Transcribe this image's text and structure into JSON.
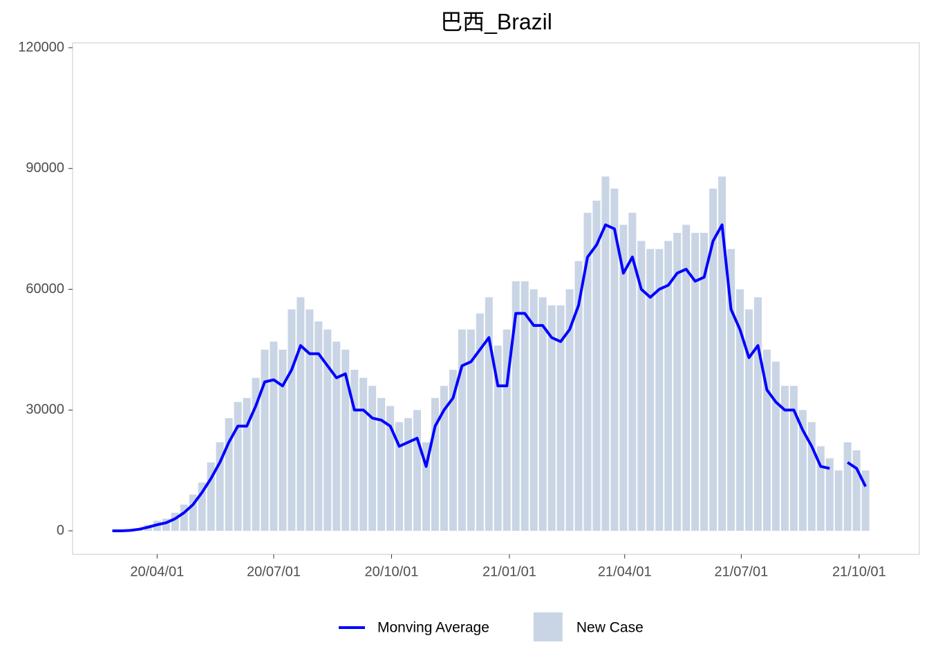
{
  "chart_data": {
    "type": "combo",
    "title": "巴西_Brazil",
    "x": [
      "20/02/26",
      "20/03/04",
      "20/03/11",
      "20/03/18",
      "20/03/25",
      "20/04/01",
      "20/04/08",
      "20/04/15",
      "20/04/22",
      "20/04/29",
      "20/05/06",
      "20/05/13",
      "20/05/20",
      "20/05/27",
      "20/06/03",
      "20/06/10",
      "20/06/17",
      "20/06/24",
      "20/07/01",
      "20/07/08",
      "20/07/15",
      "20/07/22",
      "20/07/29",
      "20/08/05",
      "20/08/12",
      "20/08/19",
      "20/08/26",
      "20/09/02",
      "20/09/09",
      "20/09/16",
      "20/09/23",
      "20/09/30",
      "20/10/07",
      "20/10/14",
      "20/10/21",
      "20/10/28",
      "20/11/04",
      "20/11/11",
      "20/11/18",
      "20/11/25",
      "20/12/02",
      "20/12/09",
      "20/12/16",
      "20/12/23",
      "20/12/30",
      "21/01/06",
      "21/01/13",
      "21/01/20",
      "21/01/27",
      "21/02/03",
      "21/02/10",
      "21/02/17",
      "21/02/24",
      "21/03/03",
      "21/03/10",
      "21/03/17",
      "21/03/24",
      "21/03/31",
      "21/04/07",
      "21/04/14",
      "21/04/21",
      "21/04/28",
      "21/05/05",
      "21/05/12",
      "21/05/19",
      "21/05/26",
      "21/06/02",
      "21/06/09",
      "21/06/16",
      "21/06/23",
      "21/06/30",
      "21/07/07",
      "21/07/14",
      "21/07/21",
      "21/07/28",
      "21/08/04",
      "21/08/11",
      "21/08/18",
      "21/08/25",
      "21/09/01",
      "21/09/08",
      "21/09/15",
      "21/09/22",
      "21/09/29",
      "21/10/06"
    ],
    "series": [
      {
        "name": "Monving Average",
        "type": "line",
        "color": "#0000ff",
        "values": [
          0,
          0,
          100,
          400,
          900,
          1500,
          2000,
          3000,
          4500,
          6500,
          9500,
          13000,
          17000,
          22000,
          26000,
          26000,
          31000,
          37000,
          37500,
          36000,
          40000,
          46000,
          44000,
          44000,
          41000,
          38000,
          39000,
          30000,
          30000,
          28000,
          27500,
          26000,
          21000,
          22000,
          23000,
          16000,
          26000,
          30000,
          33000,
          41000,
          42000,
          45000,
          48000,
          36000,
          36000,
          54000,
          54000,
          51000,
          51000,
          48000,
          47000,
          50000,
          56000,
          68000,
          71000,
          76000,
          75000,
          64000,
          68000,
          60000,
          58000,
          60000,
          61000,
          64000,
          65000,
          62000,
          63000,
          72000,
          76000,
          55000,
          50000,
          43000,
          46000,
          35000,
          32000,
          30000,
          30000,
          25000,
          21000,
          16000,
          15500,
          null,
          17000,
          15500,
          11000
        ]
      },
      {
        "name": "New Case",
        "type": "bar",
        "color": "#c9d5e5",
        "values": [
          0,
          10,
          200,
          500,
          1500,
          2500,
          3000,
          4500,
          6500,
          9000,
          12000,
          17000,
          22000,
          28000,
          32000,
          33000,
          38000,
          45000,
          47000,
          45000,
          55000,
          58000,
          55000,
          52000,
          50000,
          47000,
          45000,
          40000,
          38000,
          36000,
          33000,
          31000,
          27000,
          28000,
          30000,
          22000,
          33000,
          36000,
          40000,
          50000,
          50000,
          54000,
          58000,
          46000,
          50000,
          62000,
          62000,
          60000,
          58000,
          56000,
          56000,
          60000,
          67000,
          79000,
          82000,
          88000,
          85000,
          76000,
          79000,
          72000,
          70000,
          70000,
          72000,
          74000,
          76000,
          74000,
          74000,
          85000,
          88000,
          70000,
          60000,
          55000,
          58000,
          45000,
          42000,
          36000,
          36000,
          30000,
          27000,
          21000,
          18000,
          15000,
          22000,
          20000,
          15000
        ]
      }
    ],
    "xlim": [
      "20/01/26",
      "21/11/17"
    ],
    "xticks": [
      "20/04/01",
      "20/07/01",
      "20/10/01",
      "21/01/01",
      "21/04/01",
      "21/07/01",
      "21/10/01"
    ],
    "ylim": [
      -5840,
      121200
    ],
    "yticks": [
      0,
      30000,
      60000,
      90000,
      120000
    ],
    "legend": "bottom"
  }
}
